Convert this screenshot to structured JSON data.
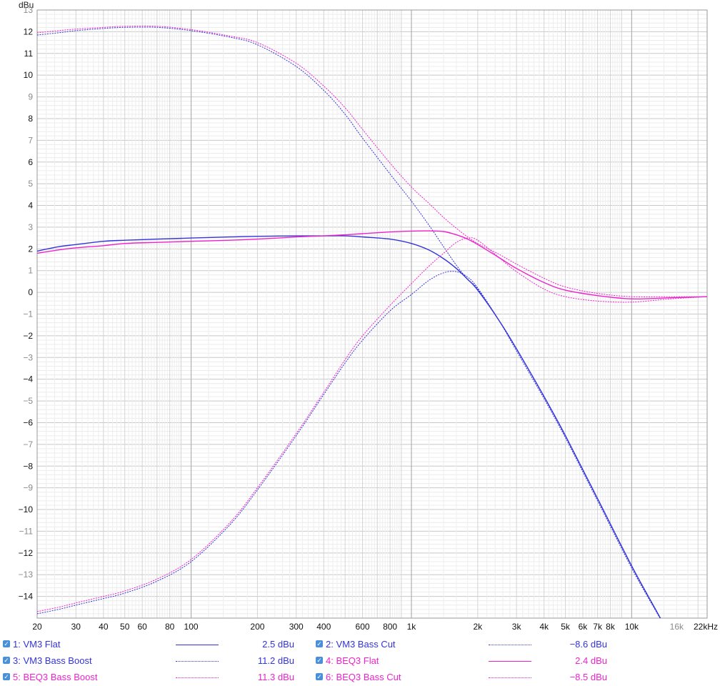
{
  "chart_data": {
    "type": "line",
    "ylabel": "dBu",
    "xscale": "log",
    "xlim": [
      20,
      22000
    ],
    "ylim": [
      -15,
      13
    ],
    "grid": true,
    "x_ticks": [
      {
        "v": 20,
        "label": "20"
      },
      {
        "v": 30,
        "label": "30"
      },
      {
        "v": 40,
        "label": "40"
      },
      {
        "v": 50,
        "label": "50"
      },
      {
        "v": 60,
        "label": "60"
      },
      {
        "v": 80,
        "label": "80"
      },
      {
        "v": 100,
        "label": "100"
      },
      {
        "v": 200,
        "label": "200"
      },
      {
        "v": 300,
        "label": "300"
      },
      {
        "v": 400,
        "label": "400"
      },
      {
        "v": 600,
        "label": "600"
      },
      {
        "v": 800,
        "label": "800"
      },
      {
        "v": 1000,
        "label": "1k"
      },
      {
        "v": 2000,
        "label": "2k"
      },
      {
        "v": 3000,
        "label": "3k"
      },
      {
        "v": 4000,
        "label": "4k"
      },
      {
        "v": 5000,
        "label": "5k"
      },
      {
        "v": 6000,
        "label": "6k"
      },
      {
        "v": 7000,
        "label": "7k"
      },
      {
        "v": 8000,
        "label": "8k"
      },
      {
        "v": 10000,
        "label": "10k"
      },
      {
        "v": 16000,
        "label": "16k",
        "muted": true
      },
      {
        "v": 22000,
        "label": "22kHz"
      }
    ],
    "y_ticks": [
      {
        "v": 13,
        "label": "13",
        "muted": true
      },
      {
        "v": 12,
        "label": "12"
      },
      {
        "v": 11,
        "label": "11"
      },
      {
        "v": 10,
        "label": "10"
      },
      {
        "v": 9,
        "label": "9",
        "muted": true
      },
      {
        "v": 8,
        "label": "8"
      },
      {
        "v": 7,
        "label": "7",
        "muted": true
      },
      {
        "v": 6,
        "label": "6"
      },
      {
        "v": 5,
        "label": "5",
        "muted": true
      },
      {
        "v": 4,
        "label": "4"
      },
      {
        "v": 3,
        "label": "3",
        "muted": true
      },
      {
        "v": 2,
        "label": "2"
      },
      {
        "v": 1,
        "label": "1",
        "muted": true
      },
      {
        "v": 0,
        "label": "0"
      },
      {
        "v": -1,
        "label": "−1",
        "muted": true
      },
      {
        "v": -2,
        "label": "−2"
      },
      {
        "v": -3,
        "label": "−3",
        "muted": true
      },
      {
        "v": -4,
        "label": "−4"
      },
      {
        "v": -5,
        "label": "−5",
        "muted": true
      },
      {
        "v": -6,
        "label": "−6"
      },
      {
        "v": -7,
        "label": "−7",
        "muted": true
      },
      {
        "v": -8,
        "label": "−8"
      },
      {
        "v": -9,
        "label": "−9",
        "muted": true
      },
      {
        "v": -10,
        "label": "−10"
      },
      {
        "v": -11,
        "label": "−11",
        "muted": true
      },
      {
        "v": -12,
        "label": "−12"
      },
      {
        "v": -13,
        "label": "−13",
        "muted": true
      },
      {
        "v": -14,
        "label": "−14"
      }
    ],
    "series": [
      {
        "name": "1: VM3 Flat",
        "value": "2.5 dBu",
        "color": "#3333dd",
        "dashed": false,
        "x": [
          20,
          25,
          30,
          40,
          50,
          70,
          100,
          150,
          200,
          300,
          400,
          500,
          600,
          800,
          1000,
          1200,
          1400,
          1600,
          1800,
          2000,
          2500,
          3000,
          4000,
          5000,
          7000,
          10000,
          13000,
          14000
        ],
        "y": [
          1.9,
          2.1,
          2.2,
          2.35,
          2.4,
          2.45,
          2.5,
          2.55,
          2.58,
          2.6,
          2.6,
          2.6,
          2.55,
          2.45,
          2.25,
          1.95,
          1.55,
          1.1,
          0.6,
          0.1,
          -1.3,
          -2.6,
          -4.8,
          -6.6,
          -9.5,
          -12.6,
          -14.7,
          -15.3
        ]
      },
      {
        "name": "2: VM3 Bass Cut",
        "value": "−8.6 dBu",
        "color": "#3333dd",
        "dashed": true,
        "x": [
          20,
          25,
          30,
          40,
          50,
          70,
          100,
          150,
          200,
          300,
          400,
          500,
          600,
          800,
          1000,
          1200,
          1400,
          1600,
          1800,
          2000,
          2500,
          3000,
          4000,
          5000,
          7000,
          10000,
          13000,
          14000
        ],
        "y": [
          -14.8,
          -14.6,
          -14.4,
          -14.1,
          -13.85,
          -13.3,
          -12.4,
          -10.7,
          -9.1,
          -6.6,
          -4.7,
          -3.25,
          -2.2,
          -0.85,
          -0.1,
          0.55,
          0.9,
          0.95,
          0.7,
          0.2,
          -1.3,
          -2.7,
          -4.9,
          -6.7,
          -9.6,
          -12.7,
          -14.75,
          -15.3
        ]
      },
      {
        "name": "3: VM3 Bass Boost",
        "value": "11.2 dBu",
        "color": "#3333dd",
        "dashed": true,
        "x": [
          20,
          25,
          30,
          40,
          50,
          70,
          100,
          150,
          200,
          300,
          400,
          500,
          600,
          800,
          1000,
          1200,
          1400,
          1600,
          1800,
          2000,
          2500,
          3000,
          4000,
          5000,
          7000,
          10000,
          13000,
          14000
        ],
        "y": [
          11.85,
          11.95,
          12.05,
          12.15,
          12.2,
          12.2,
          12.05,
          11.75,
          11.4,
          10.4,
          9.3,
          8.2,
          7.1,
          5.45,
          4.2,
          3.1,
          2.1,
          1.25,
          0.6,
          0.15,
          -1.3,
          -2.6,
          -4.8,
          -6.6,
          -9.5,
          -12.6,
          -14.7,
          -15.3
        ]
      },
      {
        "name": "4: BEQ3 Flat",
        "value": "2.4 dBu",
        "color": "#ee22cc",
        "dashed": false,
        "x": [
          20,
          25,
          30,
          40,
          50,
          70,
          100,
          150,
          200,
          300,
          400,
          500,
          600,
          800,
          1000,
          1200,
          1400,
          1600,
          1800,
          2000,
          2500,
          3000,
          4000,
          5000,
          7000,
          10000,
          15000,
          22000
        ],
        "y": [
          1.8,
          1.95,
          2.05,
          2.15,
          2.25,
          2.3,
          2.35,
          2.4,
          2.45,
          2.55,
          2.6,
          2.65,
          2.7,
          2.78,
          2.82,
          2.83,
          2.8,
          2.65,
          2.45,
          2.2,
          1.6,
          1.1,
          0.45,
          0.1,
          -0.15,
          -0.3,
          -0.25,
          -0.2
        ]
      },
      {
        "name": "5: BEQ3 Bass Boost",
        "value": "11.3 dBu",
        "color": "#ee22cc",
        "dashed": true,
        "x": [
          20,
          25,
          30,
          40,
          50,
          70,
          100,
          150,
          200,
          300,
          400,
          500,
          600,
          800,
          1000,
          1200,
          1400,
          1600,
          1800,
          2000,
          2500,
          3000,
          4000,
          5000,
          7000,
          10000,
          15000,
          22000
        ],
        "y": [
          11.95,
          12.05,
          12.12,
          12.2,
          12.25,
          12.25,
          12.1,
          11.8,
          11.5,
          10.55,
          9.5,
          8.5,
          7.5,
          5.95,
          4.85,
          4.1,
          3.45,
          2.95,
          2.55,
          2.25,
          1.75,
          1.3,
          0.65,
          0.25,
          -0.05,
          -0.2,
          -0.2,
          -0.2
        ]
      },
      {
        "name": "6: BEQ3 Bass Cut",
        "value": "−8.5 dBu",
        "color": "#ee22cc",
        "dashed": true,
        "x": [
          20,
          25,
          30,
          40,
          50,
          70,
          100,
          150,
          200,
          300,
          400,
          500,
          600,
          800,
          1000,
          1200,
          1400,
          1600,
          1800,
          2000,
          2500,
          3000,
          4000,
          5000,
          7000,
          10000,
          15000,
          22000
        ],
        "y": [
          -14.7,
          -14.5,
          -14.3,
          -14.0,
          -13.75,
          -13.2,
          -12.3,
          -10.6,
          -9.0,
          -6.5,
          -4.6,
          -3.1,
          -2.0,
          -0.6,
          0.4,
          1.2,
          1.8,
          2.3,
          2.5,
          2.4,
          1.6,
          0.95,
          0.15,
          -0.2,
          -0.4,
          -0.45,
          -0.3,
          -0.2
        ]
      }
    ]
  },
  "legend": [
    {
      "label": "1: VM3 Flat",
      "value": "2.5 dBu",
      "color": "#3333dd",
      "dashed": false
    },
    {
      "label": "2: VM3 Bass Cut",
      "value": "−8.6 dBu",
      "color": "#3333dd",
      "dashed": true
    },
    {
      "label": "3: VM3 Bass Boost",
      "value": "11.2 dBu",
      "color": "#3333dd",
      "dashed": true
    },
    {
      "label": "4: BEQ3 Flat",
      "value": "2.4 dBu",
      "color": "#ee22cc",
      "dashed": false
    },
    {
      "label": "5: BEQ3 Bass Boost",
      "value": "11.3 dBu",
      "color": "#ee22cc",
      "dashed": true
    },
    {
      "label": "6: BEQ3 Bass Cut",
      "value": "−8.5 dBu",
      "color": "#ee22cc",
      "dashed": true
    }
  ]
}
